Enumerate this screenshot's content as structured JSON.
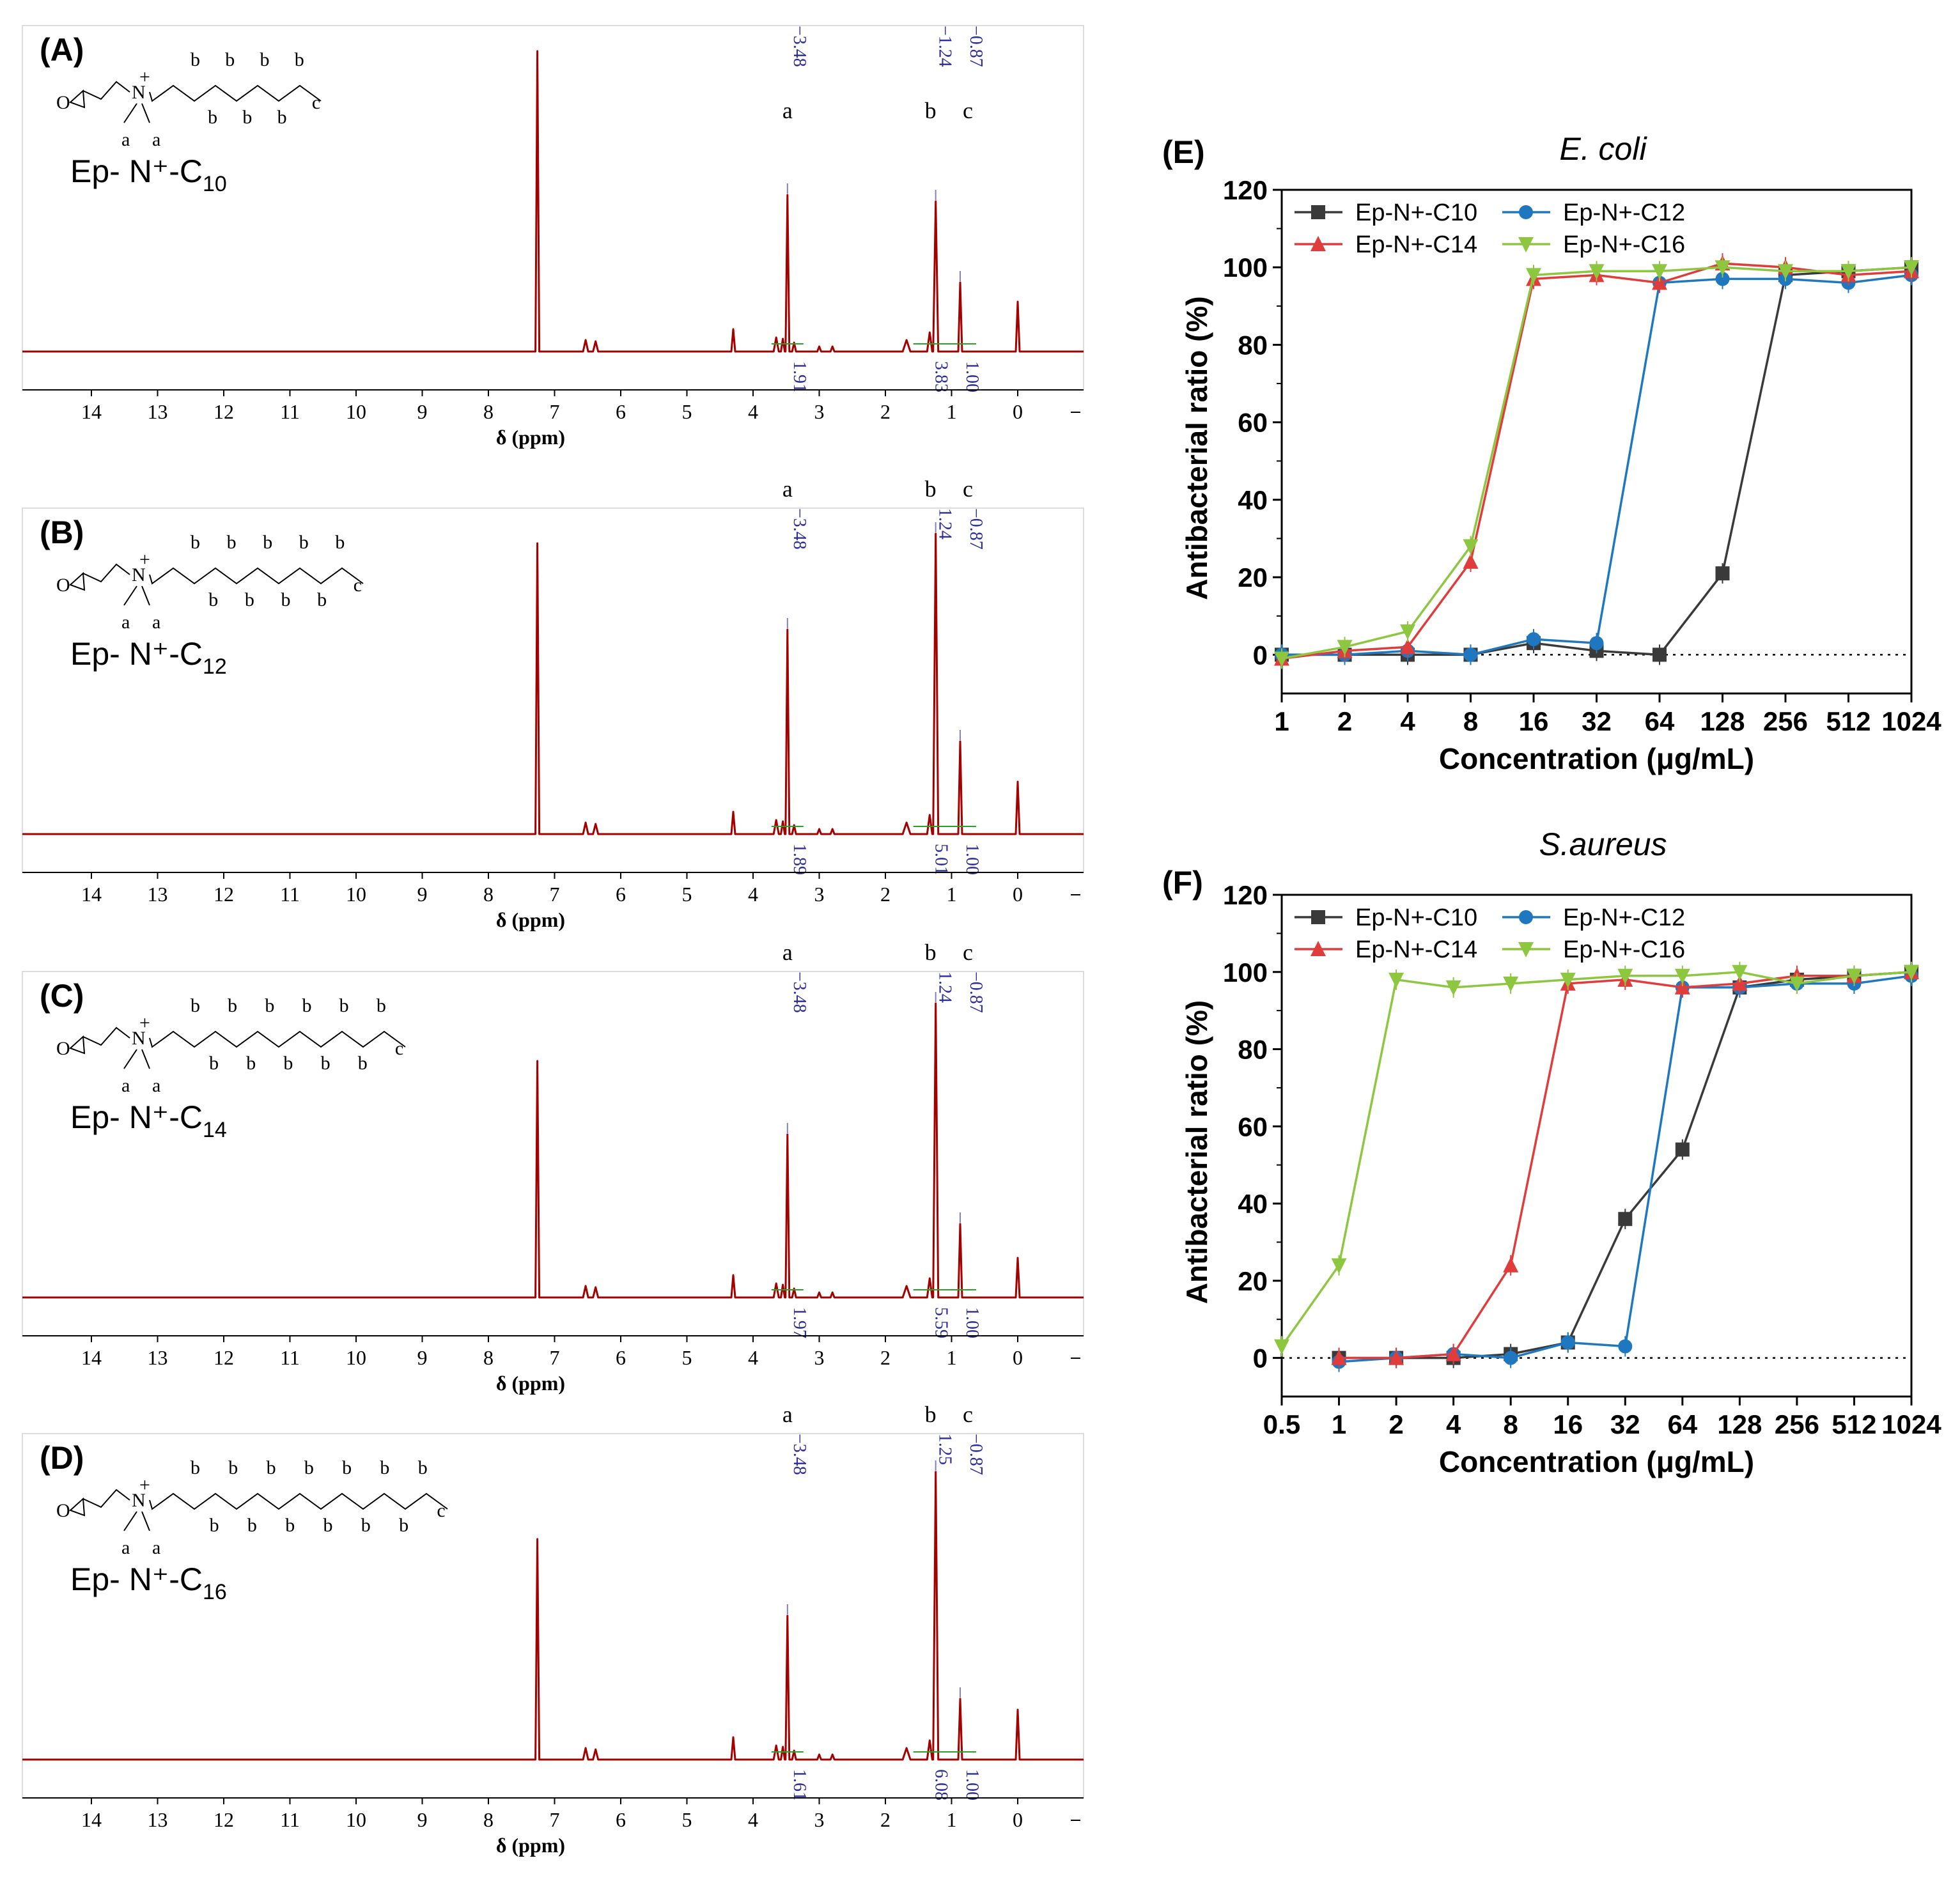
{
  "nmr_panels": [
    {
      "label": "(A)",
      "compound": "Ep- N⁺-C",
      "compound_sub": "10",
      "chain_labels": [
        "b",
        "b",
        "b",
        "b",
        "b",
        "b",
        "b",
        "c"
      ],
      "methyl_labels": [
        "a",
        "a"
      ],
      "shift_labels": [
        "−3.48",
        "−1.24",
        "−0.87"
      ],
      "assign_labels": [
        "a",
        "b",
        "c"
      ],
      "integrals": [
        "1.91",
        "3.83",
        "1.00"
      ]
    },
    {
      "label": "(B)",
      "compound": "Ep- N⁺-C",
      "compound_sub": "12",
      "chain_labels": [
        "b",
        "b",
        "b",
        "b",
        "b",
        "b",
        "b",
        "b",
        "b",
        "c"
      ],
      "methyl_labels": [
        "a",
        "a"
      ],
      "shift_labels": [
        "−3.48",
        "1.24",
        "−0.87"
      ],
      "assign_labels": [
        "a",
        "b",
        "c"
      ],
      "integrals": [
        "1.89",
        "5.01",
        "1.00"
      ]
    },
    {
      "label": "(C)",
      "compound": "Ep- N⁺-C",
      "compound_sub": "14",
      "chain_labels": [
        "b",
        "b",
        "b",
        "b",
        "b",
        "b",
        "b",
        "b",
        "b",
        "b",
        "b",
        "c"
      ],
      "methyl_labels": [
        "a",
        "a"
      ],
      "shift_labels": [
        "−3.48",
        "1.24",
        "−0.87"
      ],
      "assign_labels": [
        "a",
        "b",
        "c"
      ],
      "integrals": [
        "1.97",
        "5.59",
        "1.00"
      ]
    },
    {
      "label": "(D)",
      "compound": "Ep- N⁺-C",
      "compound_sub": "16",
      "chain_labels": [
        "b",
        "b",
        "b",
        "b",
        "b",
        "b",
        "b",
        "b",
        "b",
        "b",
        "b",
        "b",
        "b",
        "c"
      ],
      "methyl_labels": [
        "a",
        "a"
      ],
      "shift_labels": [
        "−3.48",
        "1.25",
        "−0.87"
      ],
      "assign_labels": [
        "a",
        "b",
        "c"
      ],
      "integrals": [
        "1.61",
        "6.08",
        "1.00"
      ]
    }
  ],
  "nmr_axis": {
    "ticks": [
      "14",
      "13",
      "12",
      "11",
      "10",
      "9",
      "8",
      "7",
      "6",
      "5",
      "4",
      "3",
      "2",
      "1",
      "0"
    ],
    "xlabel": "δ (ppm)"
  },
  "nmr_structure_text": {
    "N": "N",
    "plus": "+"
  },
  "chart_data": [
    {
      "panel": "(E)",
      "type": "line",
      "title": "E. coli",
      "xlabel": "Concentration (μg/mL)",
      "ylabel": "Antibacterial ratio (%)",
      "x_scale": "log2",
      "x_ticks": [
        "1",
        "2",
        "4",
        "8",
        "16",
        "32",
        "64",
        "128",
        "256",
        "512",
        "1024"
      ],
      "x_tick_values": [
        1,
        2,
        4,
        8,
        16,
        32,
        64,
        128,
        256,
        512,
        1024
      ],
      "y_ticks": [
        "0",
        "20",
        "40",
        "60",
        "80",
        "100",
        "120"
      ],
      "ylim": [
        -10,
        120
      ],
      "series": [
        {
          "name": "Ep-N+-C10",
          "color": "#3a3a3a",
          "marker": "square",
          "x": [
            1,
            2,
            4,
            8,
            16,
            32,
            64,
            128,
            256,
            512,
            1024
          ],
          "values": [
            0,
            0,
            0,
            0,
            3,
            1,
            0,
            21,
            98,
            99,
            100
          ]
        },
        {
          "name": "Ep-N+-C12",
          "color": "#1f77c0",
          "marker": "circle",
          "x": [
            1,
            2,
            4,
            8,
            16,
            32,
            64,
            128,
            256,
            512,
            1024
          ],
          "values": [
            0,
            0,
            1,
            0,
            4,
            3,
            96,
            97,
            97,
            96,
            98
          ]
        },
        {
          "name": "Ep-N+-C14",
          "color": "#e03c3c",
          "marker": "triangle-up",
          "x": [
            1,
            2,
            4,
            8,
            16,
            32,
            64,
            128,
            256,
            512,
            1024
          ],
          "values": [
            -1,
            1,
            2,
            24,
            97,
            98,
            96,
            101,
            100,
            98,
            99
          ]
        },
        {
          "name": "Ep-N+-C16",
          "color": "#8dc63f",
          "marker": "triangle-down",
          "x": [
            1,
            2,
            4,
            8,
            16,
            32,
            64,
            128,
            256,
            512,
            1024
          ],
          "values": [
            -1,
            2,
            6,
            28,
            98,
            99,
            99,
            100,
            99,
            99,
            100
          ]
        }
      ]
    },
    {
      "panel": "(F)",
      "type": "line",
      "title": "S.aureus",
      "xlabel": "Concentration (μg/mL)",
      "ylabel": "Antibacterial ratio (%)",
      "x_scale": "log2",
      "x_ticks": [
        "0.5",
        "1",
        "2",
        "4",
        "8",
        "16",
        "32",
        "64",
        "128",
        "256",
        "512",
        "1024"
      ],
      "x_tick_values": [
        0.5,
        1,
        2,
        4,
        8,
        16,
        32,
        64,
        128,
        256,
        512,
        1024
      ],
      "y_ticks": [
        "0",
        "20",
        "40",
        "60",
        "80",
        "100",
        "120"
      ],
      "ylim": [
        -10,
        120
      ],
      "series": [
        {
          "name": "Ep-N+-C10",
          "color": "#3a3a3a",
          "marker": "square",
          "x": [
            1,
            2,
            4,
            8,
            16,
            32,
            64,
            128,
            256,
            512,
            1024
          ],
          "values": [
            0,
            0,
            0,
            1,
            4,
            36,
            54,
            96,
            98,
            99,
            100
          ]
        },
        {
          "name": "Ep-N+-C12",
          "color": "#1f77c0",
          "marker": "circle",
          "x": [
            1,
            2,
            4,
            8,
            16,
            32,
            64,
            128,
            256,
            512,
            1024
          ],
          "values": [
            -1,
            0,
            1,
            0,
            4,
            3,
            96,
            96,
            97,
            97,
            99
          ]
        },
        {
          "name": "Ep-N+-C14",
          "color": "#e03c3c",
          "marker": "triangle-up",
          "x": [
            1,
            2,
            4,
            8,
            16,
            32,
            64,
            128,
            256,
            512,
            1024
          ],
          "values": [
            0,
            0,
            1,
            24,
            97,
            98,
            96,
            97,
            99,
            99,
            100
          ]
        },
        {
          "name": "Ep-N+-C16",
          "color": "#8dc63f",
          "marker": "triangle-down",
          "x": [
            0.5,
            1,
            2,
            4,
            8,
            16,
            32,
            64,
            128,
            256,
            512,
            1024
          ],
          "values": [
            3,
            24,
            98,
            96,
            97,
            98,
            99,
            99,
            100,
            97,
            99,
            100
          ]
        }
      ]
    }
  ]
}
